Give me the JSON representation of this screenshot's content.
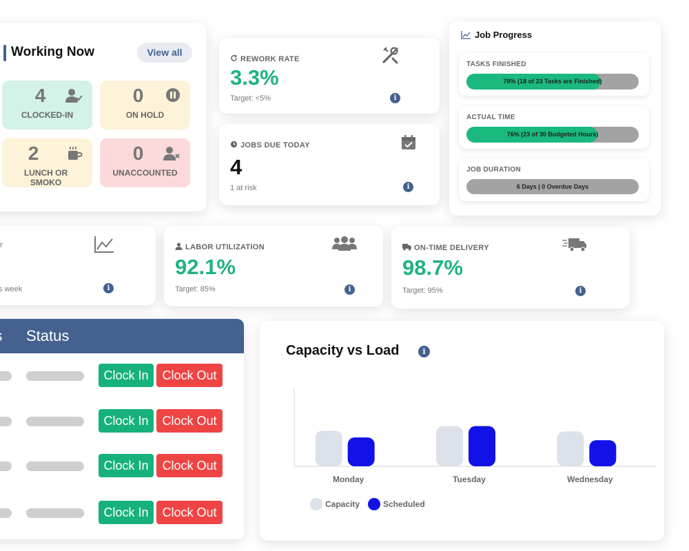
{
  "working_now": {
    "title": "Working Now",
    "view_all": "View all",
    "tiles": [
      {
        "count": "4",
        "label": "CLOCKED-IN",
        "icon": "user-check-icon"
      },
      {
        "count": "0",
        "label": "ON HOLD",
        "icon": "pause-icon"
      },
      {
        "count": "2",
        "label": "LUNCH OR SMOKO",
        "icon": "coffee-icon"
      },
      {
        "count": "0",
        "label": "UNACCOUNTED",
        "icon": "user-x-icon"
      }
    ]
  },
  "kpis": {
    "rework": {
      "label": "REWORK RATE",
      "value": "3.3%",
      "sub": "Target: <5%",
      "icon": "tools-icon"
    },
    "jobs_due": {
      "label": "JOBS DUE TODAY",
      "value": "4",
      "sub": "1 at risk",
      "icon": "calendar-check-icon"
    },
    "partial": {
      "label_fragment": "r",
      "sub": "s week",
      "icon": "line-chart-icon"
    },
    "labor": {
      "label": "LABOR UTILIZATION",
      "value": "92.1%",
      "sub": "Target: 85%",
      "icon": "users-icon"
    },
    "ontime": {
      "label": "ON-TIME DELIVERY",
      "value": "98.7%",
      "sub": "Target: 95%",
      "icon": "truck-icon"
    }
  },
  "job_progress": {
    "title": "Job Progress",
    "items": [
      {
        "label": "TASKS FINISHED",
        "text": "78% (18 of 23 Tasks are Finished)",
        "fraction": 0.78
      },
      {
        "label": "ACTUAL TIME",
        "text": "76% (23 of 30 Budgeted Hours)",
        "fraction": 0.76
      },
      {
        "label": "JOB DURATION",
        "text": "6 Days | 0 Overdue Days",
        "fraction": 0
      }
    ]
  },
  "table": {
    "col1": "rs",
    "col2": "Status",
    "clock_in_label": "Clock In",
    "clock_out_label": "Clock Out",
    "row_count": 4
  },
  "chart": {
    "title": "Capacity vs Load",
    "info": "i"
  },
  "chart_data": {
    "type": "bar",
    "title": "Capacity vs Load",
    "categories": [
      "Monday",
      "Tuesday",
      "Wednesday"
    ],
    "series": [
      {
        "name": "Capacity",
        "values": [
          5.3,
          6.0,
          5.2
        ],
        "color": "#dce1ea"
      },
      {
        "name": "Scheduled",
        "values": [
          4.3,
          6.0,
          3.9
        ],
        "color": "#1212e8"
      }
    ],
    "ylim": [
      0,
      11
    ],
    "grid": false,
    "legend": "bottom-left",
    "xlabel": "",
    "ylabel": ""
  },
  "colors": {
    "accent": "#44618f",
    "green": "#1fb37e",
    "red": "#ef4444",
    "scheduled": "#1212e8"
  }
}
